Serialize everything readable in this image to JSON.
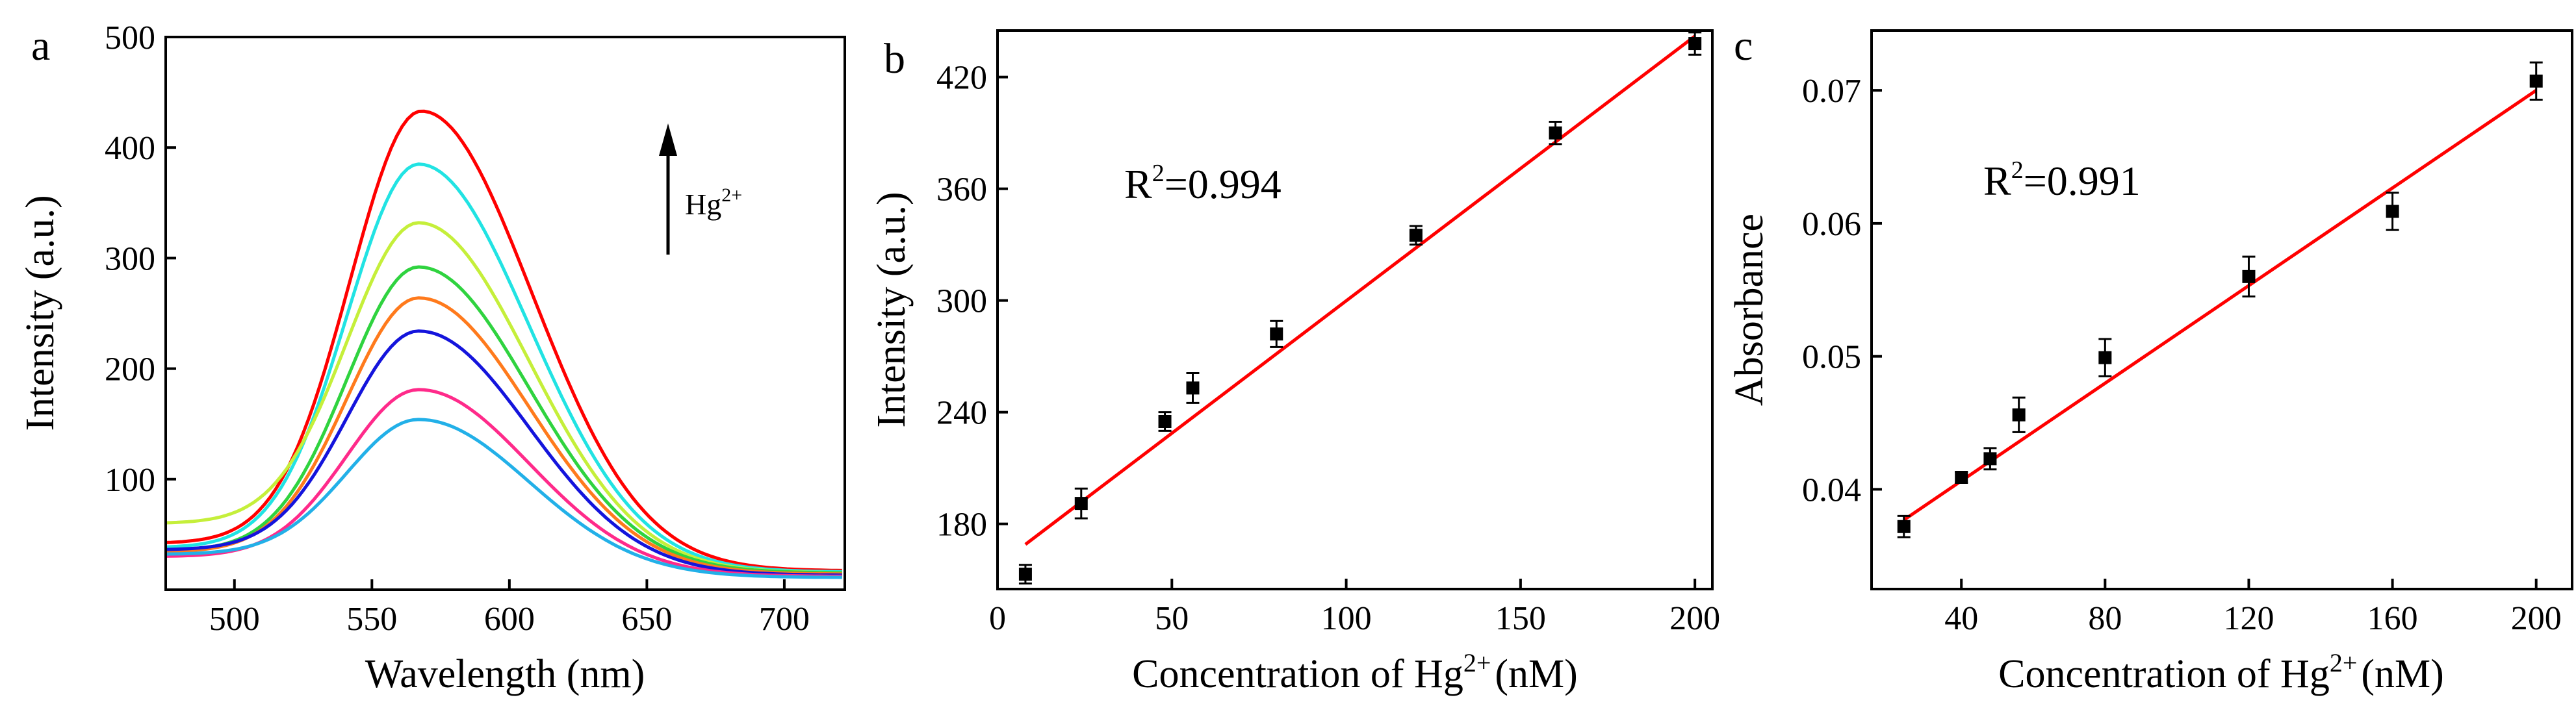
{
  "chart_data": [
    {
      "type": "line",
      "panel_label": "a",
      "xlabel": "Wavelength (nm)",
      "ylabel": "Intensity (a.u.)",
      "xlim": [
        475,
        722
      ],
      "ylim": [
        0,
        500
      ],
      "xticks": [
        500,
        550,
        600,
        650,
        700
      ],
      "yticks": [
        100,
        200,
        300,
        400,
        500
      ],
      "annotation": {
        "base": "Hg",
        "sup": "2+"
      },
      "colors": {
        "red": "#ff0000",
        "cyan": "#21e3e3",
        "yellowgreen": "#c5ef3a",
        "green": "#2fd33f",
        "orange": "#ff7a1c",
        "blue": "#1414dc",
        "magenta": "#ff2a8a",
        "skyblue": "#22b0e8"
      },
      "series": [
        {
          "color_key": "red",
          "peak_x": 568,
          "peak": 433,
          "base_left": 42,
          "base_right": 17
        },
        {
          "color_key": "cyan",
          "peak_x": 567,
          "peak": 385,
          "base_left": 38,
          "base_right": 16
        },
        {
          "color_key": "yellowgreen",
          "peak_x": 567,
          "peak": 332,
          "base_left": 60,
          "base_right": 15
        },
        {
          "color_key": "green",
          "peak_x": 567,
          "peak": 292,
          "base_left": 35,
          "base_right": 15
        },
        {
          "color_key": "orange",
          "peak_x": 567,
          "peak": 264,
          "base_left": 34,
          "base_right": 14
        },
        {
          "color_key": "blue",
          "peak_x": 567,
          "peak": 234,
          "base_left": 36,
          "base_right": 13
        },
        {
          "color_key": "magenta",
          "peak_x": 567,
          "peak": 181,
          "base_left": 30,
          "base_right": 12
        },
        {
          "color_key": "skyblue",
          "peak_x": 567,
          "peak": 154,
          "base_left": 32,
          "base_right": 11
        }
      ]
    },
    {
      "type": "scatter",
      "panel_label": "b",
      "xlabel": {
        "text": "Concentration of Hg",
        "sup": "2+",
        "after": "(nM)"
      },
      "ylabel": "Intensity (a.u.)",
      "xlim": [
        0,
        205
      ],
      "ylim": [
        145,
        445
      ],
      "xticks": [
        0,
        50,
        100,
        150,
        200
      ],
      "yticks": [
        180,
        240,
        300,
        360,
        420
      ],
      "r2": {
        "prefix": "R",
        "sup": "2",
        "value": "=0.994"
      },
      "x": [
        8,
        24,
        48,
        56,
        80,
        120,
        160,
        200
      ],
      "y": [
        153,
        191,
        235,
        253,
        282,
        335,
        390,
        438
      ],
      "err": [
        5,
        8,
        5,
        8,
        7,
        5,
        6,
        6
      ],
      "fit": {
        "x": [
          8,
          200
        ],
        "y": [
          169,
          442
        ],
        "color": "#ff0000"
      }
    },
    {
      "type": "scatter",
      "panel_label": "c",
      "xlabel": {
        "text": "Concentration of Hg",
        "sup": "2+",
        "after": "(nM)"
      },
      "ylabel": "Absorbance",
      "xlim": [
        15,
        210
      ],
      "ylim": [
        0.0325,
        0.0745
      ],
      "xticks": [
        40,
        80,
        120,
        160,
        200
      ],
      "ytick_labels": [
        "0.04",
        "0.05",
        "0.06",
        "0.07"
      ],
      "yticks": [
        0.04,
        0.05,
        0.06,
        0.07
      ],
      "r2": {
        "prefix": "R",
        "sup": "2",
        "value": "=0.991"
      },
      "x": [
        24,
        40,
        48,
        56,
        80,
        120,
        160,
        200
      ],
      "y": [
        0.0372,
        0.0409,
        0.0423,
        0.0456,
        0.0499,
        0.056,
        0.0609,
        0.0707
      ],
      "err": [
        0.0008,
        0.0004,
        0.0008,
        0.0013,
        0.0014,
        0.0015,
        0.0014,
        0.0014
      ],
      "fit": {
        "x": [
          24,
          200
        ],
        "y": [
          0.0377,
          0.07
        ],
        "color": "#ff0000"
      }
    }
  ]
}
